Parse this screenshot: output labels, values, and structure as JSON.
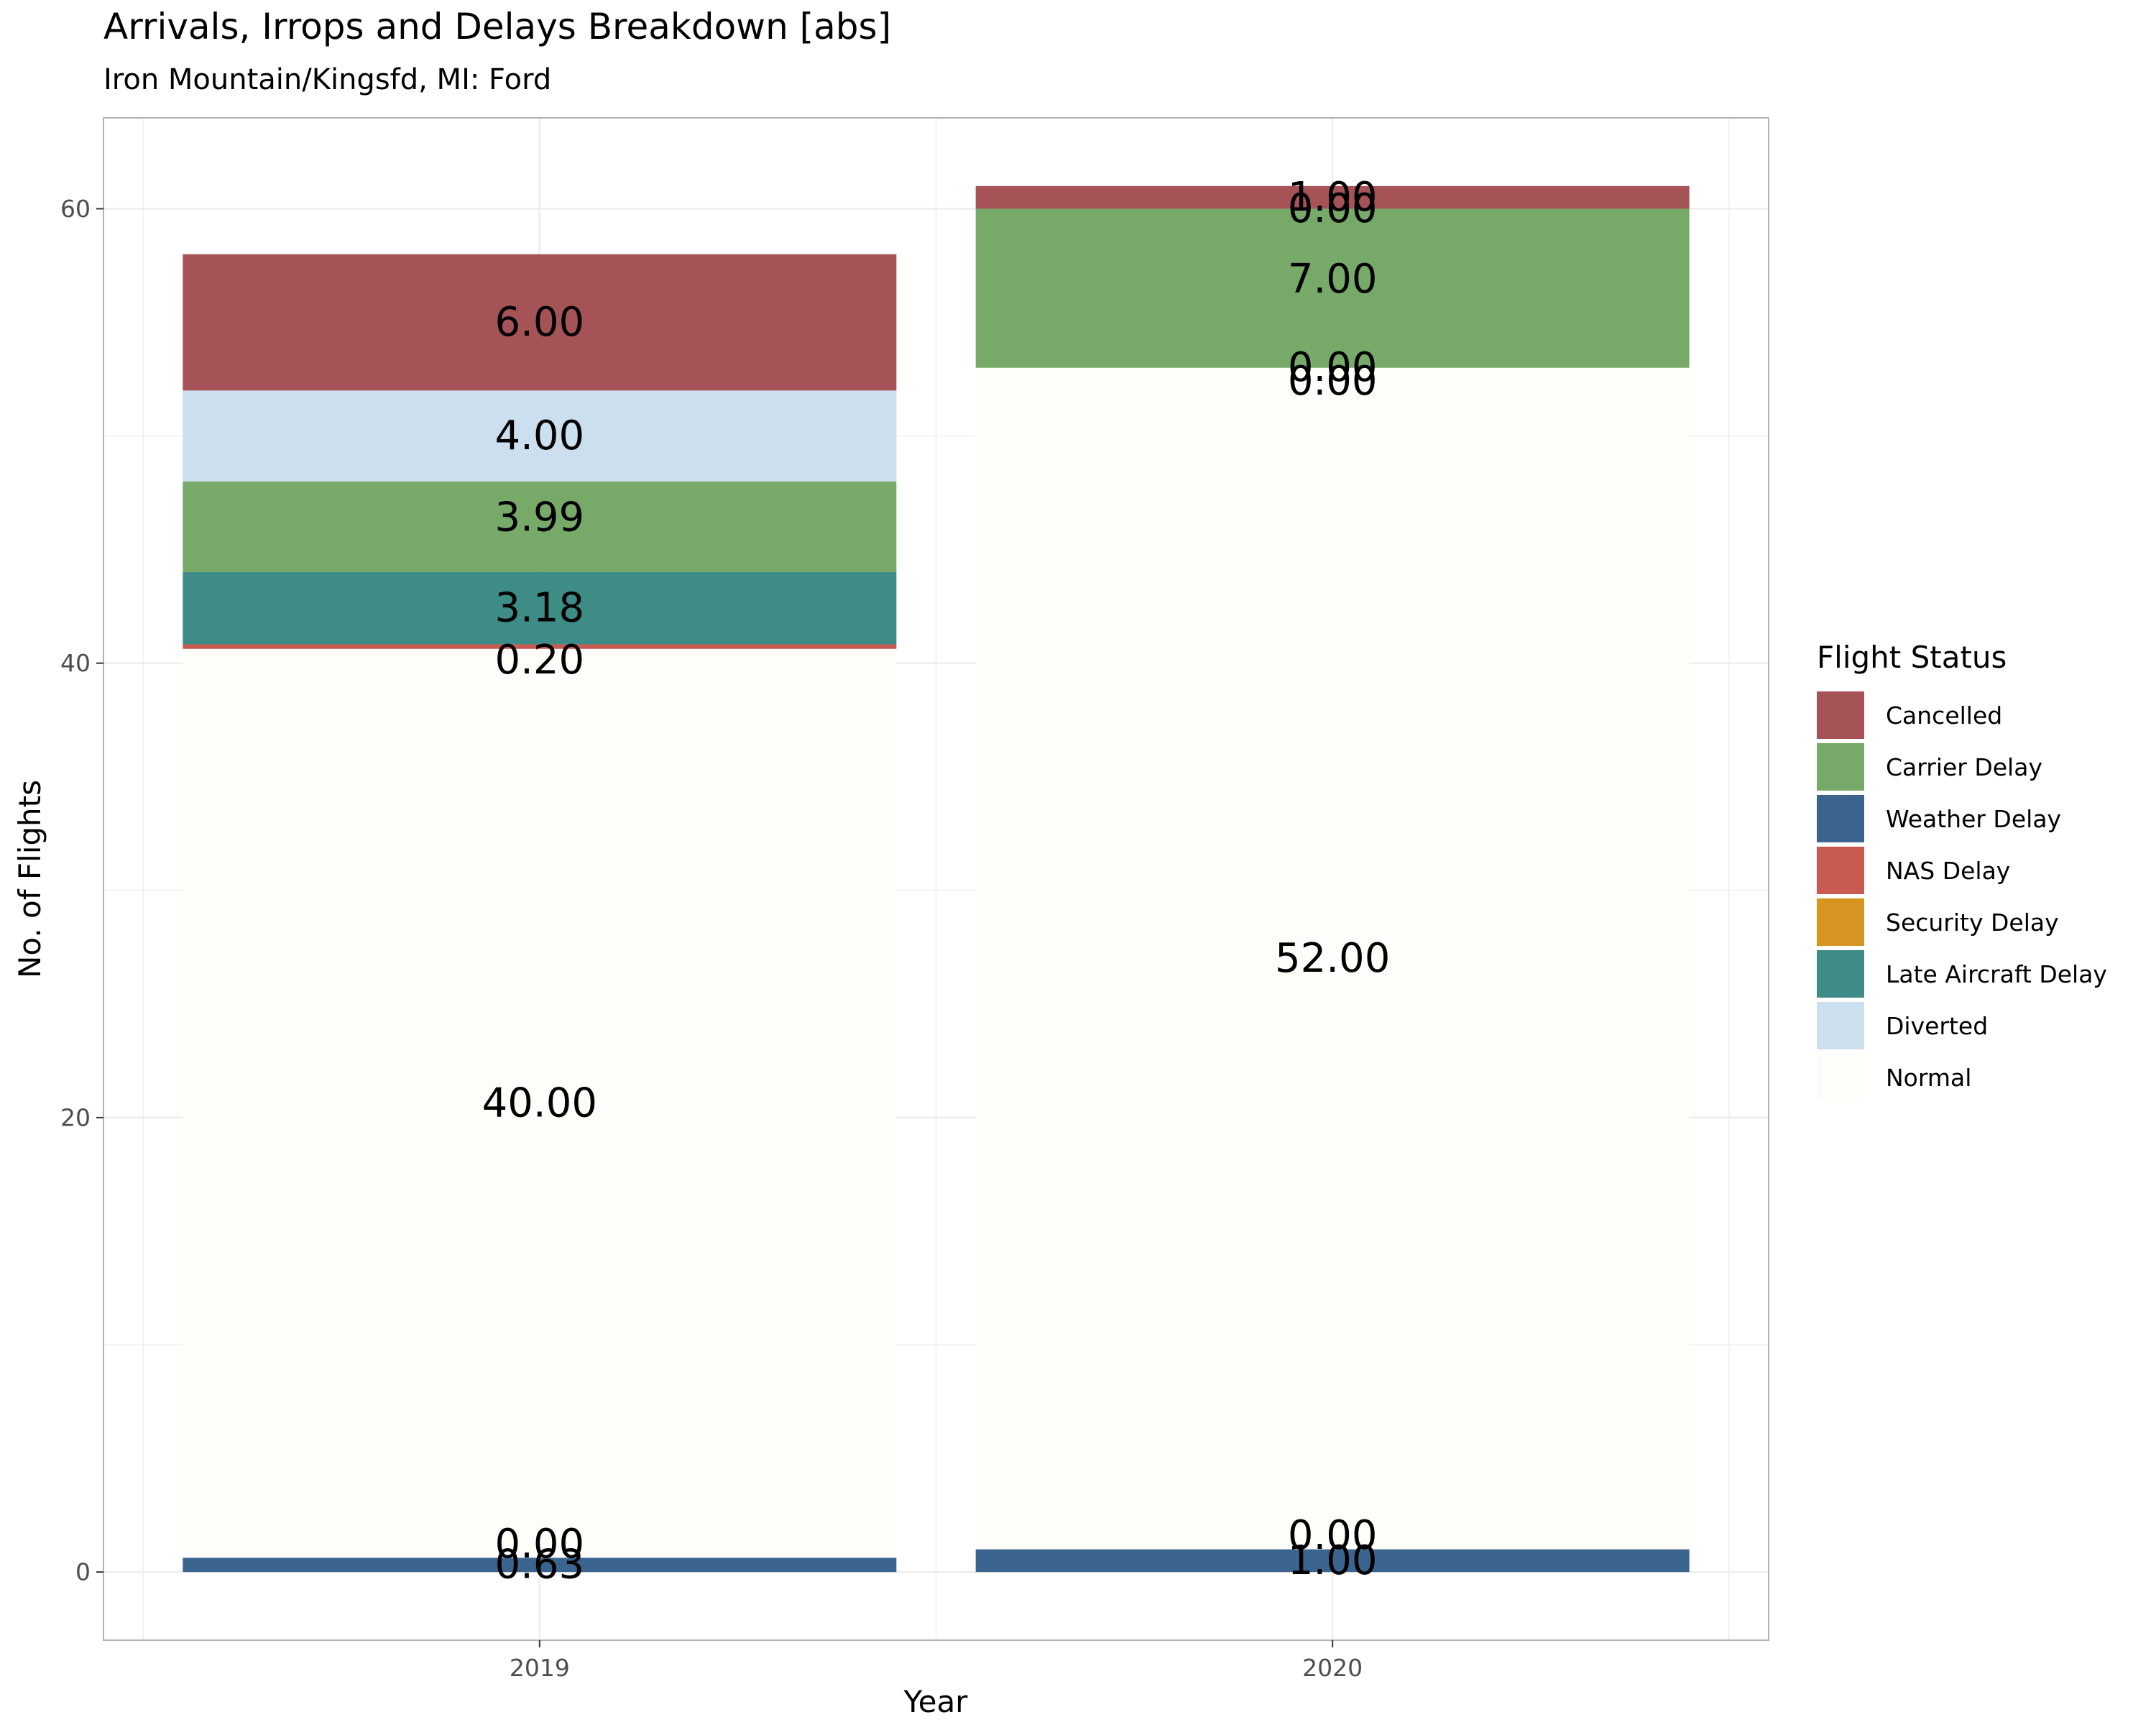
{
  "chart_data": {
    "type": "bar",
    "title": "Arrivals, Irrops and Delays Breakdown [abs]",
    "subtitle": "Iron Mountain/Kingsfd, MI: Ford",
    "xlabel": "Year",
    "ylabel": "No. of Flights",
    "categories": [
      "2019",
      "2020"
    ],
    "ylim": [
      -3,
      64
    ],
    "yticks": [
      0,
      20,
      40,
      60
    ],
    "grid": true,
    "stacked": true,
    "legend_title": "Flight Status",
    "legend_position": "right",
    "series": [
      {
        "name": "Cancelled",
        "color": "#a65357",
        "values": [
          6.0,
          1.0
        ]
      },
      {
        "name": "Carrier Delay",
        "color": "#77a968",
        "values": [
          3.99,
          7.0
        ]
      },
      {
        "name": "Weather Delay",
        "color": "#3b648e",
        "values": [
          0.63,
          1.0
        ]
      },
      {
        "name": "NAS Delay",
        "color": "#c95a4f",
        "values": [
          0.2,
          0.0
        ]
      },
      {
        "name": "Security Delay",
        "color": "#d59520",
        "values": [
          0.0,
          0.0
        ]
      },
      {
        "name": "Late Aircraft Delay",
        "color": "#3d8c85",
        "values": [
          3.18,
          0.0
        ]
      },
      {
        "name": "Diverted",
        "color": "#ccdfee",
        "values": [
          4.0,
          0.0
        ]
      },
      {
        "name": "Normal",
        "color": "#fffdfa",
        "values": [
          40.0,
          52.0
        ]
      }
    ],
    "stack_order_bottom_to_top": [
      "Weather Delay",
      "Security Delay",
      "Normal",
      "NAS Delay",
      "Late Aircraft Delay",
      "Carrier Delay",
      "Diverted",
      "Cancelled"
    ],
    "label_offsets": {
      "Security Delay": 0.6,
      "NAS Delay": -0.6,
      "Carrier Delay": 0.4
    }
  }
}
